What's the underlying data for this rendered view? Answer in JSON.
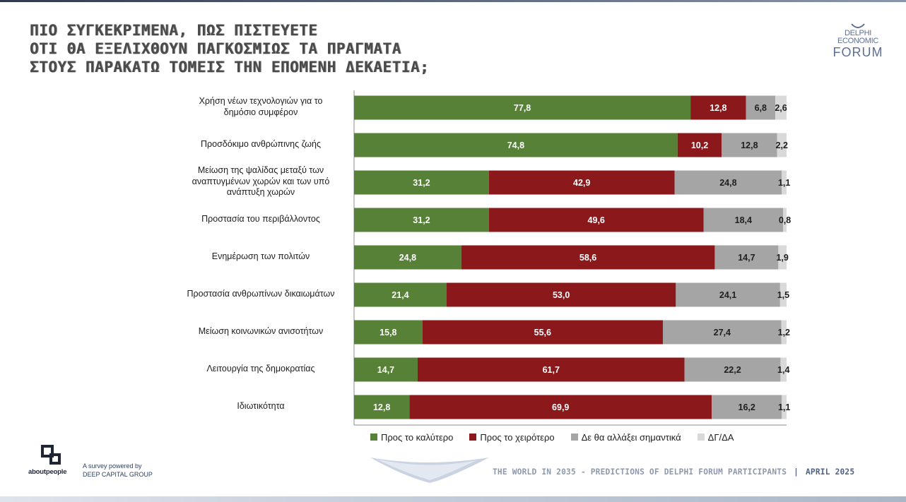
{
  "title": {
    "line1": "ΠΙΟ ΣΥΓΚΕΚΡΙΜΕΝΑ, ΠΩΣ ΠΙΣΤΕΥΕΤΕ",
    "line2": "ΟΤΙ ΘΑ ΕΞΕΛΙΧΘΟΥΝ ΠΑΓΚΟΣΜΙΩΣ ΤΑ ΠΡΑΓΜΑΤΑ",
    "line3": "ΣΤΟΥΣ ΠΑΡΑΚΑΤΩ ΤΟΜΕΙΣ ΤΗΝ ΕΠΟΜΕΝΗ ΔΕΚΑΕΤΙΑ;"
  },
  "logo": {
    "line1": "DELPHI",
    "line2": "ECONOMIC",
    "line3": "FORUM"
  },
  "colors": {
    "better": "#568137",
    "worse": "#8b181a",
    "nochange": "#a5a5a5",
    "dkna": "#d9d9d9"
  },
  "chart_data": {
    "type": "bar",
    "orientation": "horizontal",
    "stacked": true,
    "xlim": [
      0,
      100
    ],
    "grid": false,
    "legend_position": "bottom",
    "categories": [
      "Χρήση νέων τεχνολογιών για το δημόσιο συμφέρον",
      "Προσδόκιμο ανθρώπινης ζωής",
      "Μείωση της ψαλίδας μεταξύ των αναπτυγμένων χωρών και των υπό ανάπτυξη χωρών",
      "Προστασία του περιβάλλοντος",
      "Ενημέρωση των πολιτών",
      "Προστασία ανθρωπίνων δικαιωμάτων",
      "Μείωση κοινωνικών ανισοτήτων",
      "Λειτουργία της δημοκρατίας",
      "Ιδιωτικότητα"
    ],
    "category_lines": [
      [
        "Χρήση νέων τεχνολογιών για το",
        "δημόσιο συμφέρον"
      ],
      [
        "Προσδόκιμο ανθρώπινης ζωής"
      ],
      [
        "Μείωση της ψαλίδας μεταξύ των",
        "αναπτυγμένων χωρών και των υπό",
        "ανάπτυξη χωρών"
      ],
      [
        "Προστασία του περιβάλλοντος"
      ],
      [
        "Ενημέρωση των πολιτών"
      ],
      [
        "Προστασία ανθρωπίνων δικαιωμάτων"
      ],
      [
        "Μείωση κοινωνικών ανισοτήτων"
      ],
      [
        "Λειτουργία της δημοκρατίας"
      ],
      [
        "Ιδιωτικότητα"
      ]
    ],
    "series": [
      {
        "name": "Προς το καλύτερο",
        "color": "#568137",
        "label_color": "#ffffff",
        "values": [
          77.8,
          74.8,
          31.2,
          31.2,
          24.8,
          21.4,
          15.8,
          14.7,
          12.8
        ],
        "labels": [
          "77,8",
          "74,8",
          "31,2",
          "31,2",
          "24,8",
          "21,4",
          "15,8",
          "14,7",
          "12,8"
        ]
      },
      {
        "name": "Προς το χειρότερο",
        "color": "#8b181a",
        "label_color": "#ffffff",
        "values": [
          12.8,
          10.2,
          42.9,
          49.6,
          58.6,
          53.0,
          55.6,
          61.7,
          69.9
        ],
        "labels": [
          "12,8",
          "10,2",
          "42,9",
          "49,6",
          "58,6",
          "53,0",
          "55,6",
          "61,7",
          "69,9"
        ]
      },
      {
        "name": "Δε θα αλλάξει σημαντικά",
        "color": "#a5a5a5",
        "label_color": "#1e1e1e",
        "values": [
          6.8,
          12.8,
          24.8,
          18.4,
          14.7,
          24.1,
          27.4,
          22.2,
          16.2
        ],
        "labels": [
          "6,8",
          "12,8",
          "24,8",
          "18,4",
          "14,7",
          "24,1",
          "27,4",
          "22,2",
          "16,2"
        ]
      },
      {
        "name": "ΔΓ/ΔΑ",
        "color": "#d9d9d9",
        "label_color": "#1e1e1e",
        "values": [
          2.6,
          2.2,
          1.1,
          0.8,
          1.9,
          1.5,
          1.2,
          1.4,
          1.1
        ],
        "labels": [
          "2,6",
          "2,2",
          "1,1",
          "0,8",
          "1,9",
          "1,5",
          "1,2",
          "1,4",
          "1,1"
        ]
      }
    ]
  },
  "legend": [
    {
      "label": "Προς το καλύτερο",
      "color": "#568137"
    },
    {
      "label": "Προς το χειρότερο",
      "color": "#8b181a"
    },
    {
      "label": "Δε θα αλλάξει σημαντικά",
      "color": "#a5a5a5"
    },
    {
      "label": "ΔΓ/ΔΑ",
      "color": "#d9d9d9"
    }
  ],
  "footer": {
    "brand": "aboutpeople",
    "powered_line1": "A survey powered by",
    "powered_line2": "DEEP CAPITAL GROUP",
    "event": "THE WORLD IN 2035 - PREDICTIONS OF DELPHI FORUM PARTICIPANTS",
    "separator": "|",
    "date": "APRIL 2025"
  }
}
